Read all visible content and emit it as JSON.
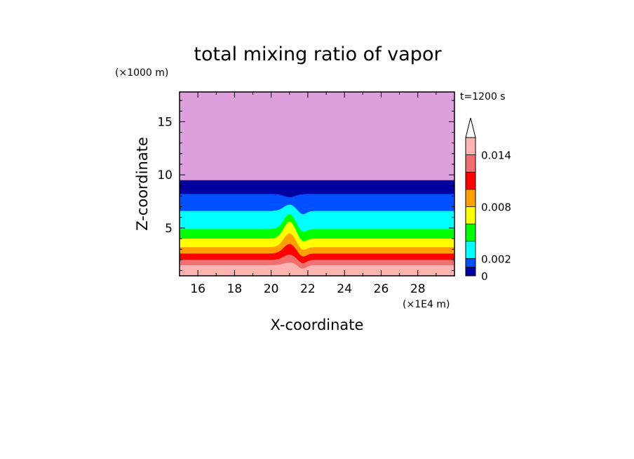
{
  "chart_data": {
    "type": "heatmap",
    "title": "total mixing ratio of vapor",
    "xlabel": "X-coordinate",
    "ylabel": "Z-coordinate",
    "x_unit": "(×1E4 m)",
    "y_unit": "(×1000 m)",
    "time_label": "t=1200 s",
    "xlim": [
      15,
      30
    ],
    "ylim": [
      0.5,
      17.8
    ],
    "x_ticks": [
      16,
      18,
      20,
      22,
      24,
      26,
      28
    ],
    "y_ticks": [
      5,
      10,
      15
    ],
    "colorbar": {
      "tick_labels": [
        "0",
        "0.002",
        "0.008",
        "0.014"
      ],
      "tick_values": [
        0,
        0.002,
        0.008,
        0.014
      ],
      "levels": [
        0,
        0.001,
        0.002,
        0.004,
        0.006,
        0.008,
        0.01,
        0.012,
        0.014,
        0.016
      ],
      "colors": [
        "#dda0dd",
        "#0000a0",
        "#0050ff",
        "#00ffff",
        "#00ff00",
        "#ffff00",
        "#ffa000",
        "#ff0000",
        "#f07070",
        "#ffb4b4"
      ],
      "extend": "max"
    },
    "layers": [
      {
        "color": "#ffb4b4",
        "z_top": 1.5,
        "bump": 0.25
      },
      {
        "color": "#f07070",
        "z_top": 2.0,
        "bump": 0.5
      },
      {
        "color": "#ff0000",
        "z_top": 2.6,
        "bump": 0.9
      },
      {
        "color": "#ffa000",
        "z_top": 3.2,
        "bump": 1.3
      },
      {
        "color": "#ffff00",
        "z_top": 4.0,
        "bump": 1.6
      },
      {
        "color": "#00ff00",
        "z_top": 4.9,
        "bump": 1.4
      },
      {
        "color": "#00ffff",
        "z_top": 6.6,
        "bump": 0.6
      },
      {
        "color": "#0050ff",
        "z_top": 8.2,
        "bump": -0.3
      },
      {
        "color": "#0000a0",
        "z_top": 9.5,
        "bump": 0.0
      }
    ],
    "background_color": "#dda0dd"
  }
}
